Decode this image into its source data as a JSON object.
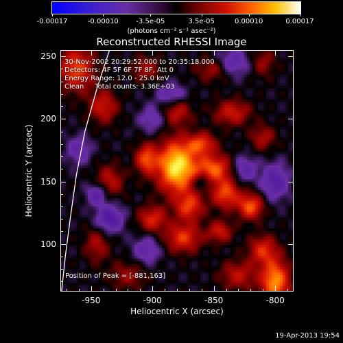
{
  "colorbar": {
    "tick_labels": [
      "-0.00017",
      "-0.00010",
      "-3.5e-05",
      "3.5e-05",
      "0.00010",
      "0.00017"
    ],
    "tick_values": [
      -0.00017,
      -0.0001,
      -3.5e-05,
      3.5e-05,
      0.0001,
      0.00017
    ],
    "range": [
      -0.00017,
      0.00017
    ],
    "units": "(photons cm⁻² s⁻¹ asec⁻²)"
  },
  "header": {
    "title": "Reconstructed RHESSI Image",
    "time_range": "30-Nov-2002 20:29:52.000 to 20:35:18.000",
    "detectors": "Detectors: 4F 5F 6F 7F 8F, Att 0",
    "energy": "Energy Range: 12.0 - 25.0 keV",
    "clean": "Clean     Total counts: 3.36E+03"
  },
  "annotation": {
    "peak": "Position of Peak = [-881,163]"
  },
  "footer": {
    "timestamp": "19-Apr-2013 19:54"
  },
  "chart_data": {
    "type": "heatmap",
    "title": "Reconstructed RHESSI Image",
    "xlabel": "Heliocentric X (arcsec)",
    "ylabel": "Heliocentric Y (arcsec)",
    "xlim": [
      -975,
      -785
    ],
    "ylim": [
      62,
      255
    ],
    "xticks": [
      -950,
      -900,
      -850,
      -800
    ],
    "yticks": [
      100,
      150,
      200,
      250
    ],
    "peak_position": [
      -881,
      163
    ],
    "colormap": [
      "#0000ff",
      "#3b00b0",
      "#5a1fa0",
      "#6a2ea6",
      "#000000",
      "#8a0000",
      "#d01000",
      "#ff5a00",
      "#ffb000",
      "#ffff60",
      "#ffffff"
    ],
    "limb_curve": [
      [
        -935,
        255
      ],
      [
        -945,
        225
      ],
      [
        -955,
        190
      ],
      [
        -962,
        155
      ],
      [
        -967,
        120
      ],
      [
        -971,
        90
      ],
      [
        -974,
        62
      ]
    ],
    "blobs": [
      {
        "x": -880,
        "y": 162,
        "sx": 11,
        "sy": 14,
        "a": 1.0
      },
      {
        "x": -905,
        "y": 168,
        "sx": 6,
        "sy": 8,
        "a": 0.55
      },
      {
        "x": -850,
        "y": 160,
        "sx": 10,
        "sy": 8,
        "a": 0.6
      },
      {
        "x": -860,
        "y": 180,
        "sx": 8,
        "sy": 6,
        "a": 0.5
      },
      {
        "x": -840,
        "y": 140,
        "sx": 8,
        "sy": 8,
        "a": 0.55
      },
      {
        "x": -820,
        "y": 130,
        "sx": 7,
        "sy": 7,
        "a": 0.6
      },
      {
        "x": -870,
        "y": 130,
        "sx": 8,
        "sy": 8,
        "a": 0.5
      },
      {
        "x": -900,
        "y": 120,
        "sx": 8,
        "sy": 7,
        "a": 0.45
      },
      {
        "x": -875,
        "y": 105,
        "sx": 10,
        "sy": 8,
        "a": 0.5
      },
      {
        "x": -845,
        "y": 110,
        "sx": 7,
        "sy": 6,
        "a": 0.4
      },
      {
        "x": -810,
        "y": 95,
        "sx": 8,
        "sy": 8,
        "a": 0.45
      },
      {
        "x": -800,
        "y": 70,
        "sx": 8,
        "sy": 12,
        "a": 0.75
      },
      {
        "x": -830,
        "y": 75,
        "sx": 10,
        "sy": 8,
        "a": 0.35
      },
      {
        "x": -880,
        "y": 205,
        "sx": 8,
        "sy": 7,
        "a": 0.35
      },
      {
        "x": -835,
        "y": 205,
        "sx": 10,
        "sy": 7,
        "a": 0.4
      },
      {
        "x": -810,
        "y": 185,
        "sx": 7,
        "sy": 7,
        "a": 0.3
      },
      {
        "x": -935,
        "y": 150,
        "sx": 8,
        "sy": 9,
        "a": 0.35
      },
      {
        "x": -945,
        "y": 100,
        "sx": 7,
        "sy": 10,
        "a": 0.3
      },
      {
        "x": -962,
        "y": 240,
        "sx": 10,
        "sy": 12,
        "a": 0.55
      },
      {
        "x": -940,
        "y": 210,
        "sx": 8,
        "sy": 9,
        "a": 0.4
      },
      {
        "x": -905,
        "y": 240,
        "sx": 8,
        "sy": 7,
        "a": 0.3
      },
      {
        "x": -850,
        "y": 240,
        "sx": 10,
        "sy": 7,
        "a": 0.3
      },
      {
        "x": -810,
        "y": 245,
        "sx": 7,
        "sy": 8,
        "a": 0.25
      },
      {
        "x": -920,
        "y": 75,
        "sx": 10,
        "sy": 8,
        "a": 0.25
      },
      {
        "x": -935,
        "y": 120,
        "sx": 8,
        "sy": 8,
        "a": -0.45
      },
      {
        "x": -945,
        "y": 140,
        "sx": 6,
        "sy": 6,
        "a": -0.4
      },
      {
        "x": -825,
        "y": 160,
        "sx": 7,
        "sy": 7,
        "a": -0.35
      },
      {
        "x": -800,
        "y": 150,
        "sx": 8,
        "sy": 10,
        "a": -0.4
      },
      {
        "x": -885,
        "y": 220,
        "sx": 8,
        "sy": 6,
        "a": -0.3
      },
      {
        "x": -860,
        "y": 150,
        "sx": 5,
        "sy": 5,
        "a": -0.3
      },
      {
        "x": -905,
        "y": 95,
        "sx": 8,
        "sy": 8,
        "a": -0.3
      },
      {
        "x": -835,
        "y": 245,
        "sx": 10,
        "sy": 8,
        "a": -0.35
      },
      {
        "x": -900,
        "y": 200,
        "sx": 8,
        "sy": 8,
        "a": -0.25
      },
      {
        "x": -960,
        "y": 175,
        "sx": 7,
        "sy": 8,
        "a": -0.3
      }
    ]
  }
}
